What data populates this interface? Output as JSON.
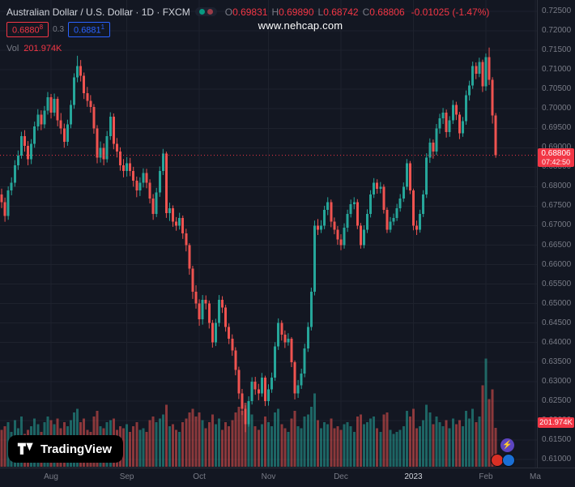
{
  "header": {
    "symbol_title": "Australian Dollar / U.S. Dollar · 1D · FXCM",
    "ohlc": {
      "o_label": "O",
      "o": "0.69831",
      "h_label": "H",
      "h": "0.69890",
      "l_label": "L",
      "l": "0.68742",
      "c_label": "C",
      "c": "0.68806",
      "change": "-0.01025 (-1.47%)"
    },
    "bid": "0.6880",
    "bid_sup": "8",
    "spread": "0.3",
    "ask": "0.6881",
    "ask_sup": "1",
    "vol_label": "Vol",
    "vol_value": "201.974K"
  },
  "watermark": "www.nehcap.com",
  "badges": {
    "last_price": "0.68806",
    "countdown": "07:42:50",
    "volume": "201.974K"
  },
  "logo": {
    "text": "TradingView"
  },
  "colors": {
    "background": "#131722",
    "grid": "#1e222d",
    "up": "#26a69a",
    "down": "#ef5350",
    "accent_red": "#f23645",
    "accent_blue": "#2962ff",
    "text": "#d1d4dc",
    "muted": "#787b86"
  },
  "axis": {
    "price_labels": [
      "0.72500",
      "0.72000",
      "0.71500",
      "0.71000",
      "0.70500",
      "0.70000",
      "0.69500",
      "0.69000",
      "0.68500",
      "0.68000",
      "0.67500",
      "0.67000",
      "0.66500",
      "0.66000",
      "0.65500",
      "0.65000",
      "0.64500",
      "0.64000",
      "0.63500",
      "0.63000",
      "0.62500",
      "0.62000",
      "0.61500",
      "0.61000"
    ],
    "time_labels": [
      {
        "label": "Aug",
        "i": 15
      },
      {
        "label": "Sep",
        "i": 38
      },
      {
        "label": "Oct",
        "i": 60
      },
      {
        "label": "Nov",
        "i": 81
      },
      {
        "label": "Dec",
        "i": 103
      },
      {
        "label": "2023",
        "i": 125,
        "major": true
      },
      {
        "label": "Feb",
        "i": 147
      },
      {
        "label": "Ma",
        "i": 162
      }
    ]
  },
  "chart_data": {
    "type": "candlestick",
    "title": "Australian Dollar / U.S. Dollar",
    "symbol": "AUD/USD",
    "timeframe": "1D",
    "exchange": "FXCM",
    "y_min": 0.61,
    "y_max": 0.725,
    "y_step": 0.005,
    "grid": true,
    "last_price": 0.68806,
    "last_change": -0.01025,
    "last_change_pct": -1.47,
    "last_volume_k": 201.974,
    "vol_scale_max": 620,
    "slots": 163,
    "columns": [
      "open",
      "high",
      "low",
      "close",
      "volume_k"
    ],
    "candles": [
      [
        0.678,
        0.6795,
        0.6745,
        0.676,
        190
      ],
      [
        0.676,
        0.6772,
        0.671,
        0.6725,
        210
      ],
      [
        0.6725,
        0.6801,
        0.6715,
        0.679,
        230
      ],
      [
        0.679,
        0.6824,
        0.6778,
        0.681,
        180
      ],
      [
        0.681,
        0.6868,
        0.68,
        0.6855,
        240
      ],
      [
        0.6855,
        0.6893,
        0.6843,
        0.688,
        200
      ],
      [
        0.688,
        0.6941,
        0.6872,
        0.693,
        260
      ],
      [
        0.693,
        0.6945,
        0.689,
        0.6905,
        170
      ],
      [
        0.6905,
        0.6917,
        0.6855,
        0.687,
        190
      ],
      [
        0.687,
        0.6922,
        0.6858,
        0.691,
        210
      ],
      [
        0.691,
        0.6967,
        0.69,
        0.6955,
        250
      ],
      [
        0.6955,
        0.6999,
        0.6944,
        0.6985,
        220
      ],
      [
        0.6985,
        0.6996,
        0.6945,
        0.696,
        180
      ],
      [
        0.696,
        0.7007,
        0.695,
        0.6995,
        230
      ],
      [
        0.6995,
        0.7043,
        0.6985,
        0.703,
        260
      ],
      [
        0.703,
        0.7038,
        0.6975,
        0.699,
        240
      ],
      [
        0.699,
        0.7039,
        0.6981,
        0.7025,
        220
      ],
      [
        0.7025,
        0.7031,
        0.6955,
        0.697,
        250
      ],
      [
        0.697,
        0.6989,
        0.6935,
        0.695,
        200
      ],
      [
        0.695,
        0.6962,
        0.69,
        0.6915,
        230
      ],
      [
        0.6915,
        0.6972,
        0.6905,
        0.696,
        210
      ],
      [
        0.696,
        0.7022,
        0.695,
        0.701,
        240
      ],
      [
        0.701,
        0.7091,
        0.7,
        0.708,
        280
      ],
      [
        0.708,
        0.7136,
        0.7068,
        0.711,
        300
      ],
      [
        0.711,
        0.7125,
        0.707,
        0.7085,
        230
      ],
      [
        0.7085,
        0.7093,
        0.7025,
        0.704,
        250
      ],
      [
        0.704,
        0.7056,
        0.7005,
        0.702,
        190
      ],
      [
        0.702,
        0.7035,
        0.699,
        0.7005,
        180
      ],
      [
        0.7005,
        0.7012,
        0.6936,
        0.695,
        260
      ],
      [
        0.695,
        0.6958,
        0.686,
        0.6875,
        290
      ],
      [
        0.6875,
        0.6916,
        0.6862,
        0.69,
        210
      ],
      [
        0.69,
        0.6911,
        0.6855,
        0.687,
        200
      ],
      [
        0.687,
        0.6943,
        0.6862,
        0.693,
        230
      ],
      [
        0.693,
        0.6991,
        0.692,
        0.698,
        240
      ],
      [
        0.698,
        0.6988,
        0.6896,
        0.691,
        250
      ],
      [
        0.691,
        0.6925,
        0.6875,
        0.689,
        190
      ],
      [
        0.689,
        0.6901,
        0.6841,
        0.6855,
        210
      ],
      [
        0.6855,
        0.6871,
        0.6824,
        0.684,
        200
      ],
      [
        0.684,
        0.6876,
        0.6826,
        0.686,
        220
      ],
      [
        0.686,
        0.6874,
        0.6827,
        0.684,
        180
      ],
      [
        0.684,
        0.6851,
        0.68,
        0.6815,
        210
      ],
      [
        0.6815,
        0.6826,
        0.6773,
        0.679,
        230
      ],
      [
        0.679,
        0.6824,
        0.6776,
        0.681,
        190
      ],
      [
        0.681,
        0.6847,
        0.6798,
        0.6835,
        200
      ],
      [
        0.6835,
        0.6846,
        0.6796,
        0.681,
        180
      ],
      [
        0.681,
        0.6819,
        0.6757,
        0.677,
        240
      ],
      [
        0.677,
        0.6781,
        0.6715,
        0.673,
        260
      ],
      [
        0.673,
        0.6797,
        0.6722,
        0.6785,
        230
      ],
      [
        0.6785,
        0.6852,
        0.6774,
        0.684,
        250
      ],
      [
        0.684,
        0.6897,
        0.683,
        0.6885,
        270
      ],
      [
        0.6885,
        0.689,
        0.672,
        0.6732,
        320
      ],
      [
        0.6732,
        0.6759,
        0.6712,
        0.6745,
        210
      ],
      [
        0.6745,
        0.6752,
        0.6697,
        0.671,
        220
      ],
      [
        0.671,
        0.6722,
        0.6687,
        0.67,
        190
      ],
      [
        0.67,
        0.6733,
        0.669,
        0.672,
        180
      ],
      [
        0.672,
        0.6726,
        0.6666,
        0.668,
        230
      ],
      [
        0.668,
        0.6692,
        0.6634,
        0.665,
        250
      ],
      [
        0.665,
        0.6655,
        0.6574,
        0.659,
        280
      ],
      [
        0.659,
        0.6597,
        0.6512,
        0.653,
        300
      ],
      [
        0.653,
        0.6547,
        0.6487,
        0.65,
        260
      ],
      [
        0.65,
        0.6511,
        0.6443,
        0.646,
        280
      ],
      [
        0.646,
        0.6522,
        0.6446,
        0.651,
        240
      ],
      [
        0.651,
        0.6521,
        0.6485,
        0.65,
        200
      ],
      [
        0.65,
        0.6508,
        0.6436,
        0.645,
        230
      ],
      [
        0.645,
        0.6458,
        0.6387,
        0.64,
        270
      ],
      [
        0.64,
        0.6461,
        0.6391,
        0.645,
        220
      ],
      [
        0.645,
        0.6522,
        0.6441,
        0.651,
        250
      ],
      [
        0.651,
        0.6519,
        0.6476,
        0.649,
        190
      ],
      [
        0.649,
        0.6497,
        0.6428,
        0.644,
        230
      ],
      [
        0.644,
        0.6449,
        0.6396,
        0.641,
        210
      ],
      [
        0.641,
        0.6421,
        0.6366,
        0.638,
        240
      ],
      [
        0.638,
        0.6388,
        0.6316,
        0.633,
        280
      ],
      [
        0.633,
        0.6338,
        0.6255,
        0.627,
        310
      ],
      [
        0.627,
        0.6281,
        0.6214,
        0.623,
        290
      ],
      [
        0.623,
        0.6239,
        0.617,
        0.619,
        330
      ],
      [
        0.619,
        0.6262,
        0.6184,
        0.625,
        300
      ],
      [
        0.625,
        0.6311,
        0.6241,
        0.63,
        270
      ],
      [
        0.63,
        0.6312,
        0.6266,
        0.628,
        210
      ],
      [
        0.628,
        0.6294,
        0.6252,
        0.627,
        190
      ],
      [
        0.627,
        0.6322,
        0.6261,
        0.631,
        220
      ],
      [
        0.631,
        0.6315,
        0.6237,
        0.625,
        260
      ],
      [
        0.625,
        0.6293,
        0.6238,
        0.628,
        230
      ],
      [
        0.628,
        0.6323,
        0.6271,
        0.631,
        210
      ],
      [
        0.631,
        0.6401,
        0.6302,
        0.639,
        280
      ],
      [
        0.639,
        0.6462,
        0.6381,
        0.645,
        300
      ],
      [
        0.645,
        0.6457,
        0.6405,
        0.642,
        220
      ],
      [
        0.642,
        0.6431,
        0.6386,
        0.64,
        200
      ],
      [
        0.64,
        0.6424,
        0.6392,
        0.641,
        180
      ],
      [
        0.641,
        0.6414,
        0.6337,
        0.635,
        250
      ],
      [
        0.635,
        0.6354,
        0.6254,
        0.627,
        290
      ],
      [
        0.627,
        0.6304,
        0.6258,
        0.629,
        210
      ],
      [
        0.629,
        0.6333,
        0.6281,
        0.632,
        200
      ],
      [
        0.632,
        0.6397,
        0.6311,
        0.6385,
        260
      ],
      [
        0.6385,
        0.6452,
        0.6376,
        0.644,
        270
      ],
      [
        0.644,
        0.6541,
        0.6431,
        0.653,
        310
      ],
      [
        0.653,
        0.6713,
        0.6521,
        0.67,
        380
      ],
      [
        0.67,
        0.6717,
        0.6676,
        0.669,
        240
      ],
      [
        0.669,
        0.6714,
        0.6681,
        0.67,
        200
      ],
      [
        0.67,
        0.6751,
        0.6691,
        0.674,
        230
      ],
      [
        0.674,
        0.6773,
        0.6727,
        0.676,
        220
      ],
      [
        0.676,
        0.6767,
        0.6696,
        0.671,
        250
      ],
      [
        0.671,
        0.6721,
        0.6678,
        0.669,
        200
      ],
      [
        0.669,
        0.6699,
        0.6651,
        0.6665,
        210
      ],
      [
        0.6665,
        0.6678,
        0.6637,
        0.665,
        190
      ],
      [
        0.665,
        0.6706,
        0.6641,
        0.6695,
        220
      ],
      [
        0.6695,
        0.6741,
        0.6684,
        0.673,
        230
      ],
      [
        0.673,
        0.6767,
        0.6721,
        0.6755,
        210
      ],
      [
        0.6755,
        0.6773,
        0.6742,
        0.676,
        180
      ],
      [
        0.676,
        0.6768,
        0.6691,
        0.67,
        260
      ],
      [
        0.67,
        0.6707,
        0.6641,
        0.665,
        270
      ],
      [
        0.665,
        0.6701,
        0.6642,
        0.669,
        220
      ],
      [
        0.669,
        0.6742,
        0.6681,
        0.673,
        230
      ],
      [
        0.673,
        0.6791,
        0.6721,
        0.678,
        250
      ],
      [
        0.678,
        0.6822,
        0.6771,
        0.681,
        260
      ],
      [
        0.681,
        0.6819,
        0.6782,
        0.6795,
        200
      ],
      [
        0.6795,
        0.6812,
        0.6783,
        0.68,
        180
      ],
      [
        0.68,
        0.6806,
        0.6731,
        0.674,
        270
      ],
      [
        0.674,
        0.6747,
        0.6681,
        0.669,
        280
      ],
      [
        0.669,
        0.6722,
        0.6682,
        0.671,
        190
      ],
      [
        0.671,
        0.6731,
        0.6701,
        0.672,
        170
      ],
      [
        0.672,
        0.6756,
        0.6712,
        0.6745,
        180
      ],
      [
        0.6745,
        0.6781,
        0.6736,
        0.677,
        190
      ],
      [
        0.677,
        0.6811,
        0.6761,
        0.68,
        210
      ],
      [
        0.68,
        0.6871,
        0.6792,
        0.686,
        290
      ],
      [
        0.686,
        0.6866,
        0.6781,
        0.679,
        260
      ],
      [
        0.679,
        0.6795,
        0.6688,
        0.67,
        300
      ],
      [
        0.67,
        0.6713,
        0.6676,
        0.669,
        200
      ],
      [
        0.669,
        0.6741,
        0.6682,
        0.673,
        210
      ],
      [
        0.673,
        0.6791,
        0.6722,
        0.678,
        240
      ],
      [
        0.678,
        0.6886,
        0.6771,
        0.6875,
        320
      ],
      [
        0.6875,
        0.6924,
        0.6861,
        0.6913,
        280
      ],
      [
        0.6913,
        0.6921,
        0.6872,
        0.689,
        220
      ],
      [
        0.689,
        0.6961,
        0.6881,
        0.695,
        260
      ],
      [
        0.695,
        0.6987,
        0.6936,
        0.6975,
        230
      ],
      [
        0.6975,
        0.7002,
        0.6961,
        0.699,
        210
      ],
      [
        0.699,
        0.6998,
        0.6926,
        0.694,
        240
      ],
      [
        0.694,
        0.6981,
        0.6928,
        0.697,
        200
      ],
      [
        0.697,
        0.7022,
        0.6961,
        0.701,
        250
      ],
      [
        0.701,
        0.7018,
        0.6971,
        0.6985,
        220
      ],
      [
        0.6985,
        0.6992,
        0.6922,
        0.6937,
        240
      ],
      [
        0.6937,
        0.6979,
        0.6928,
        0.6968,
        210
      ],
      [
        0.6968,
        0.7047,
        0.6959,
        0.7035,
        290
      ],
      [
        0.7035,
        0.7072,
        0.7021,
        0.706,
        250
      ],
      [
        0.706,
        0.7121,
        0.7051,
        0.711,
        300
      ],
      [
        0.711,
        0.7119,
        0.7076,
        0.709,
        230
      ],
      [
        0.709,
        0.7131,
        0.7081,
        0.712,
        260
      ],
      [
        0.712,
        0.7126,
        0.7043,
        0.7058,
        420
      ],
      [
        0.7058,
        0.7142,
        0.7046,
        0.7133,
        560
      ],
      [
        0.7133,
        0.7157,
        0.7061,
        0.7074,
        350
      ],
      [
        0.7074,
        0.7081,
        0.6962,
        0.6983,
        400
      ],
      [
        0.69831,
        0.6989,
        0.68742,
        0.68806,
        201.974
      ]
    ]
  }
}
